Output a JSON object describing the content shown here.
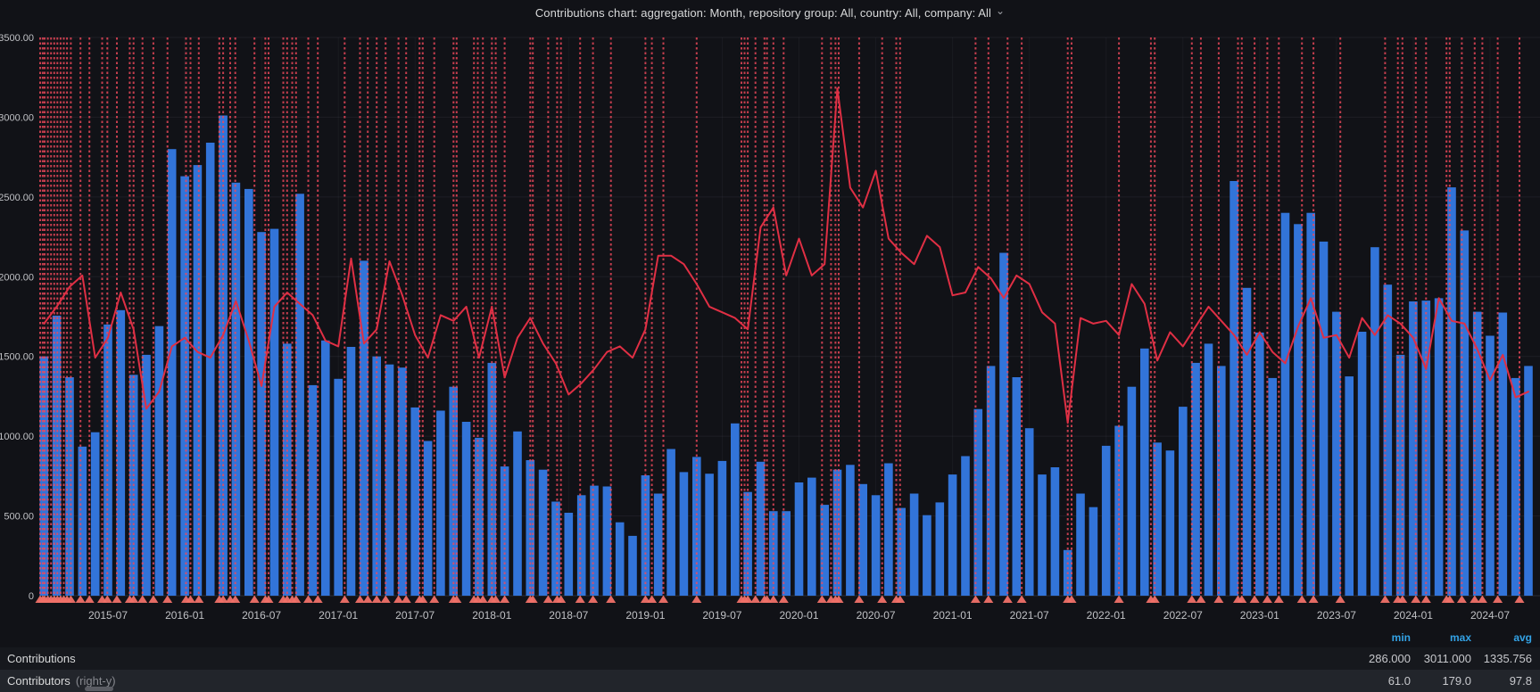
{
  "title": {
    "text": "Contributions chart: aggregation: Month, repository group: All, country: All, company: All",
    "chevron": "⌄"
  },
  "legend": {
    "headers": [
      "min",
      "max",
      "avg"
    ],
    "rows": [
      {
        "label": "Contributions",
        "suffix": "",
        "min": "286.000",
        "max": "3011.000",
        "avg": "1335.756"
      },
      {
        "label": "Contributors",
        "suffix": "(right-y)",
        "min": "61.0",
        "max": "179.0",
        "avg": "97.8"
      }
    ]
  },
  "colors": {
    "background": "#111217",
    "bar": "#3274d9",
    "line": "#e02f44",
    "annotation": "#f2495c",
    "marker": "#f07168",
    "grid": "rgba(204,204,220,0.07)",
    "axis_text": "#c0c1c5"
  },
  "chart_data": {
    "type": "combo_bar_line",
    "x_start": "2015-02",
    "x_end": "2024-10",
    "months": 117,
    "y_axis_left": {
      "min": 0,
      "max": 3500
    },
    "y_axis_right_max": 197,
    "grid": true,
    "legend_position": "bottom",
    "y_ticks": [
      {
        "v": 0,
        "label": "0"
      },
      {
        "v": 500,
        "label": "500.00"
      },
      {
        "v": 1000,
        "label": "1000.00"
      },
      {
        "v": 1500,
        "label": "1500.00"
      },
      {
        "v": 2000,
        "label": "2000.00"
      },
      {
        "v": 2500,
        "label": "2500.00"
      },
      {
        "v": 3000,
        "label": "3000.00"
      },
      {
        "v": 3500,
        "label": "3500.00"
      }
    ],
    "x_ticks": [
      {
        "m": 5,
        "label": "2015-07"
      },
      {
        "m": 11,
        "label": "2016-01"
      },
      {
        "m": 17,
        "label": "2016-07"
      },
      {
        "m": 23,
        "label": "2017-01"
      },
      {
        "m": 29,
        "label": "2017-07"
      },
      {
        "m": 35,
        "label": "2018-01"
      },
      {
        "m": 41,
        "label": "2018-07"
      },
      {
        "m": 47,
        "label": "2019-01"
      },
      {
        "m": 53,
        "label": "2019-07"
      },
      {
        "m": 59,
        "label": "2020-01"
      },
      {
        "m": 65,
        "label": "2020-07"
      },
      {
        "m": 71,
        "label": "2021-01"
      },
      {
        "m": 77,
        "label": "2021-07"
      },
      {
        "m": 83,
        "label": "2022-01"
      },
      {
        "m": 89,
        "label": "2022-07"
      },
      {
        "m": 95,
        "label": "2023-01"
      },
      {
        "m": 101,
        "label": "2023-07"
      },
      {
        "m": 107,
        "label": "2024-01"
      },
      {
        "m": 113,
        "label": "2024-07"
      }
    ],
    "series": [
      {
        "name": "Contributions",
        "type": "bar",
        "axis": "left",
        "values": [
          1500,
          1756,
          1370,
          935,
          1025,
          1700,
          1790,
          1385,
          1510,
          1690,
          2800,
          2630,
          2700,
          2840,
          3011,
          2590,
          2550,
          2280,
          2300,
          1580,
          2520,
          1320,
          1600,
          1360,
          1560,
          2100,
          1500,
          1450,
          1430,
          1180,
          970,
          1160,
          1310,
          1090,
          990,
          1460,
          810,
          1030,
          850,
          790,
          590,
          520,
          630,
          690,
          685,
          460,
          375,
          755,
          640,
          920,
          775,
          870,
          765,
          845,
          1080,
          650,
          840,
          530,
          530,
          710,
          740,
          570,
          790,
          820,
          700,
          630,
          830,
          550,
          640,
          505,
          585,
          760,
          875,
          1170,
          1440,
          2150,
          1370,
          1050,
          760,
          805,
          286,
          640,
          555,
          940,
          1065,
          1310,
          1550,
          960,
          910,
          1185,
          1460,
          1580,
          1440,
          2600,
          1930,
          1650,
          1365,
          2400,
          2330,
          2400,
          2220,
          1780,
          1375,
          1655,
          2185,
          1950,
          1510,
          1845,
          1850,
          1865,
          2560,
          2290,
          1780,
          1630,
          1775,
          1365,
          1440
        ]
      },
      {
        "name": "Contributors",
        "type": "line",
        "axis": "right",
        "values": [
          96,
          102,
          109,
          113,
          84,
          91,
          107,
          94,
          66,
          72,
          88,
          91,
          86,
          84,
          92,
          104,
          90,
          74,
          102,
          107,
          103,
          99,
          90,
          88,
          119,
          89,
          94,
          118,
          106,
          92,
          84,
          99,
          97,
          102,
          84,
          102,
          77,
          91,
          98,
          89,
          82,
          71,
          75,
          80,
          86,
          88,
          84,
          94,
          120,
          120,
          117,
          110,
          102,
          100,
          98,
          94,
          130,
          137,
          113,
          126,
          113,
          117,
          179,
          144,
          137,
          150,
          126,
          121,
          117,
          127,
          123,
          106,
          107,
          116,
          112,
          105,
          113,
          110,
          100,
          96,
          61,
          98,
          96,
          97,
          92,
          110,
          103,
          83,
          93,
          88,
          95,
          102,
          97,
          92,
          85,
          93,
          86,
          82,
          95,
          105,
          91,
          92,
          84,
          98,
          92,
          99,
          96,
          91,
          80,
          105,
          97,
          96,
          87,
          76,
          85,
          70,
          72
        ]
      }
    ],
    "annotations": {
      "positions": [
        -0.3,
        -0.1,
        0.05,
        0.3,
        0.55,
        0.8,
        1.05,
        1.3,
        1.55,
        1.8,
        2.1,
        2.85,
        3.55,
        4.55,
        4.95,
        5.7,
        6.7,
        7.0,
        7.7,
        8.55,
        9.65,
        11.1,
        11.45,
        12.1,
        13.7,
        14.0,
        14.55,
        14.95,
        16.45,
        17.3,
        17.55,
        18.7,
        19.0,
        19.4,
        19.7,
        20.65,
        21.4,
        23.5,
        24.7,
        25.3,
        26.0,
        26.7,
        27.7,
        28.3,
        29.35,
        29.6,
        30.5,
        32.0,
        32.25,
        33.6,
        33.9,
        34.3,
        35.0,
        35.3,
        36.0,
        38.0,
        38.2,
        39.4,
        40.1,
        40.4,
        41.9,
        42.9,
        44.3,
        47.0,
        47.5,
        48.4,
        51.0,
        54.5,
        54.75,
        55.0,
        55.6,
        56.3,
        56.5,
        57.0,
        57.8,
        60.8,
        61.5,
        61.85,
        62.1,
        63.7,
        65.5,
        66.6,
        66.9,
        72.8,
        73.8,
        75.3,
        76.4,
        80.0,
        80.3,
        84.0,
        86.5,
        86.8,
        89.7,
        90.4,
        91.8,
        93.3,
        93.6,
        94.6,
        95.6,
        96.5,
        98.3,
        99.2,
        101.3,
        104.8,
        105.8,
        106.15,
        107.2,
        108.0,
        109.6,
        109.85,
        110.8,
        111.8,
        112.4,
        113.6,
        115.3
      ]
    }
  }
}
